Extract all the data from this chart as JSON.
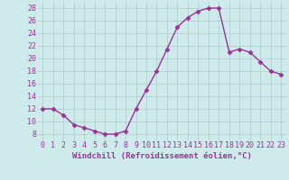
{
  "x": [
    0,
    1,
    2,
    3,
    4,
    5,
    6,
    7,
    8,
    9,
    10,
    11,
    12,
    13,
    14,
    15,
    16,
    17,
    18,
    19,
    20,
    21,
    22,
    23
  ],
  "y": [
    12,
    12,
    11,
    9.5,
    9,
    8.5,
    8,
    8,
    8.5,
    12,
    15,
    18,
    21.5,
    25,
    26.5,
    27.5,
    28,
    28,
    21,
    21.5,
    21,
    19.5,
    18,
    17.5
  ],
  "line_color": "#993399",
  "marker": "D",
  "marker_size": 2.5,
  "linewidth": 1.0,
  "bg_color": "#ceeaea",
  "grid_color": "#aacccc",
  "xlabel": "Windchill (Refroidissement éolien,°C)",
  "xlabel_color": "#993399",
  "tick_color": "#993399",
  "xlim": [
    -0.5,
    23.5
  ],
  "ylim": [
    7,
    29
  ],
  "yticks": [
    8,
    10,
    12,
    14,
    16,
    18,
    20,
    22,
    24,
    26,
    28
  ],
  "xticks": [
    0,
    1,
    2,
    3,
    4,
    5,
    6,
    7,
    8,
    9,
    10,
    11,
    12,
    13,
    14,
    15,
    16,
    17,
    18,
    19,
    20,
    21,
    22,
    23
  ],
  "xlabel_fontsize": 6.5,
  "tick_fontsize": 6
}
